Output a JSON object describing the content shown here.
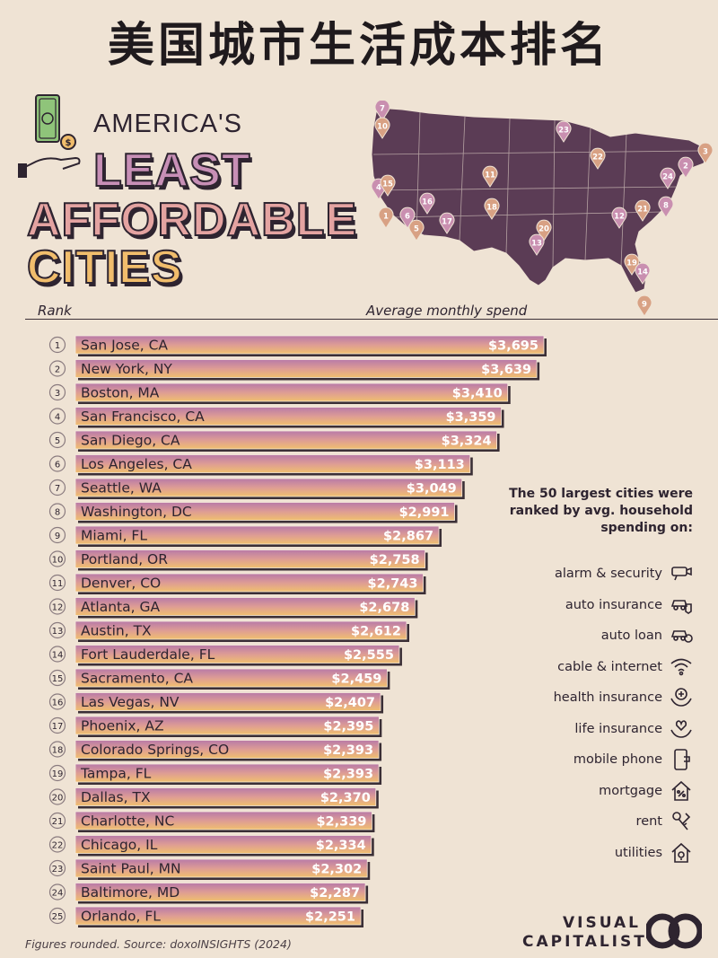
{
  "header": {
    "chinese_title": "美国城市生活成本排名",
    "line1": "AMERICA'S",
    "line2": "LEAST",
    "line3": "AFFORDABLE",
    "line4": "CITIES"
  },
  "colors": {
    "bar_top": "#b87aa8",
    "bar_bottom": "#f0bf6e",
    "map_fill": "#5b3c55",
    "accent_pink": "#c78fb6",
    "accent_orange": "#f1bd6c"
  },
  "chart_data": {
    "type": "bar",
    "orientation": "horizontal",
    "title": "AMERICA'S LEAST AFFORDABLE CITIES",
    "rank_label": "Rank",
    "value_label": "Average monthly spend",
    "ranks": [
      "1",
      "2",
      "3",
      "4",
      "5",
      "6",
      "7",
      "8",
      "9",
      "10",
      "11",
      "12",
      "13",
      "14",
      "15",
      "16",
      "17",
      "18",
      "19",
      "20",
      "21",
      "22",
      "23",
      "24",
      "25"
    ],
    "categories": [
      "San Jose, CA",
      "New York, NY",
      "Boston, MA",
      "San Francisco, CA",
      "San Diego, CA",
      "Los Angeles, CA",
      "Seattle, WA",
      "Washington, DC",
      "Miami, FL",
      "Portland, OR",
      "Denver, CO",
      "Atlanta, GA",
      "Austin, TX",
      "Fort Lauderdale, FL",
      "Sacramento, CA",
      "Las Vegas, NV",
      "Phoenix, AZ",
      "Colorado Springs, CO",
      "Tampa, FL",
      "Dallas, TX",
      "Charlotte, NC",
      "Chicago, IL",
      "Saint Paul, MN",
      "Baltimore, MD",
      "Orlando, FL"
    ],
    "values": [
      3695,
      3639,
      3410,
      3359,
      3324,
      3113,
      3049,
      2991,
      2867,
      2758,
      2743,
      2678,
      2612,
      2555,
      2459,
      2407,
      2395,
      2393,
      2393,
      2370,
      2339,
      2334,
      2302,
      2287,
      2251
    ],
    "value_labels": [
      "$3,695",
      "$3,639",
      "$3,410",
      "$3,359",
      "$3,324",
      "$3,113",
      "$3,049",
      "$2,991",
      "$2,867",
      "$2,758",
      "$2,743",
      "$2,678",
      "$2,612",
      "$2,555",
      "$2,459",
      "$2,407",
      "$2,395",
      "$2,393",
      "$2,393",
      "$2,370",
      "$2,339",
      "$2,334",
      "$2,302",
      "$2,287",
      "$2,251"
    ],
    "grid": false
  },
  "map": {
    "markers": [
      "7",
      "10",
      "23",
      "3",
      "2",
      "22",
      "24",
      "11",
      "4",
      "15",
      "16",
      "18",
      "8",
      "1",
      "6",
      "5",
      "17",
      "21",
      "12",
      "20",
      "13",
      "19",
      "14",
      "9"
    ]
  },
  "sidebar": {
    "title": "The 50 largest cities were ranked by avg. household spending on:",
    "categories": [
      {
        "label": "alarm & security",
        "icon": "camera-icon"
      },
      {
        "label": "auto insurance",
        "icon": "car-shield-icon"
      },
      {
        "label": "auto loan",
        "icon": "car-dollar-icon"
      },
      {
        "label": "cable & internet",
        "icon": "wifi-icon"
      },
      {
        "label": "health insurance",
        "icon": "hand-heart-plus-icon"
      },
      {
        "label": "life insurance",
        "icon": "hand-heart-icon"
      },
      {
        "label": "mobile phone",
        "icon": "phone-icon"
      },
      {
        "label": "mortgage",
        "icon": "house-percent-icon"
      },
      {
        "label": "rent",
        "icon": "keys-icon"
      },
      {
        "label": "utilities",
        "icon": "house-bulb-icon"
      }
    ]
  },
  "footer": {
    "source": "Figures rounded. Source: doxoINSIGHTS (2024)",
    "logo_line1": "VISUAL",
    "logo_line2": "CAPITALIST"
  }
}
